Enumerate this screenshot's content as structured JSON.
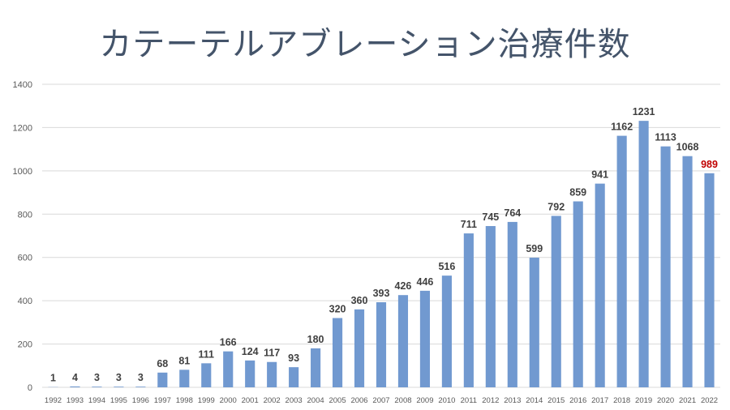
{
  "chart_data": {
    "type": "bar",
    "title": "カテーテルアブレーション治療件数",
    "categories": [
      "1992",
      "1993",
      "1994",
      "1995",
      "1996",
      "1997",
      "1998",
      "1999",
      "2000",
      "2001",
      "2002",
      "2003",
      "2004",
      "2005",
      "2006",
      "2007",
      "2008",
      "2009",
      "2010",
      "2011",
      "2012",
      "2013",
      "2014",
      "2015",
      "2016",
      "2017",
      "2018",
      "2019",
      "2020",
      "2021",
      "2022"
    ],
    "values": [
      1,
      4,
      3,
      3,
      3,
      68,
      81,
      111,
      166,
      124,
      117,
      93,
      180,
      320,
      360,
      393,
      426,
      446,
      516,
      711,
      745,
      764,
      599,
      792,
      859,
      941,
      1162,
      1231,
      1113,
      1068,
      989
    ],
    "yticks": [
      "0",
      "200",
      "400",
      "600",
      "800",
      "1000",
      "1200",
      "1400"
    ],
    "ylim": [
      0,
      1400
    ],
    "grid": true,
    "colors": {
      "bar": "#7199d0",
      "label": "#404040",
      "highlight_label": "#c00000",
      "grid": "#d9d9d9"
    },
    "highlight_index": 30
  }
}
